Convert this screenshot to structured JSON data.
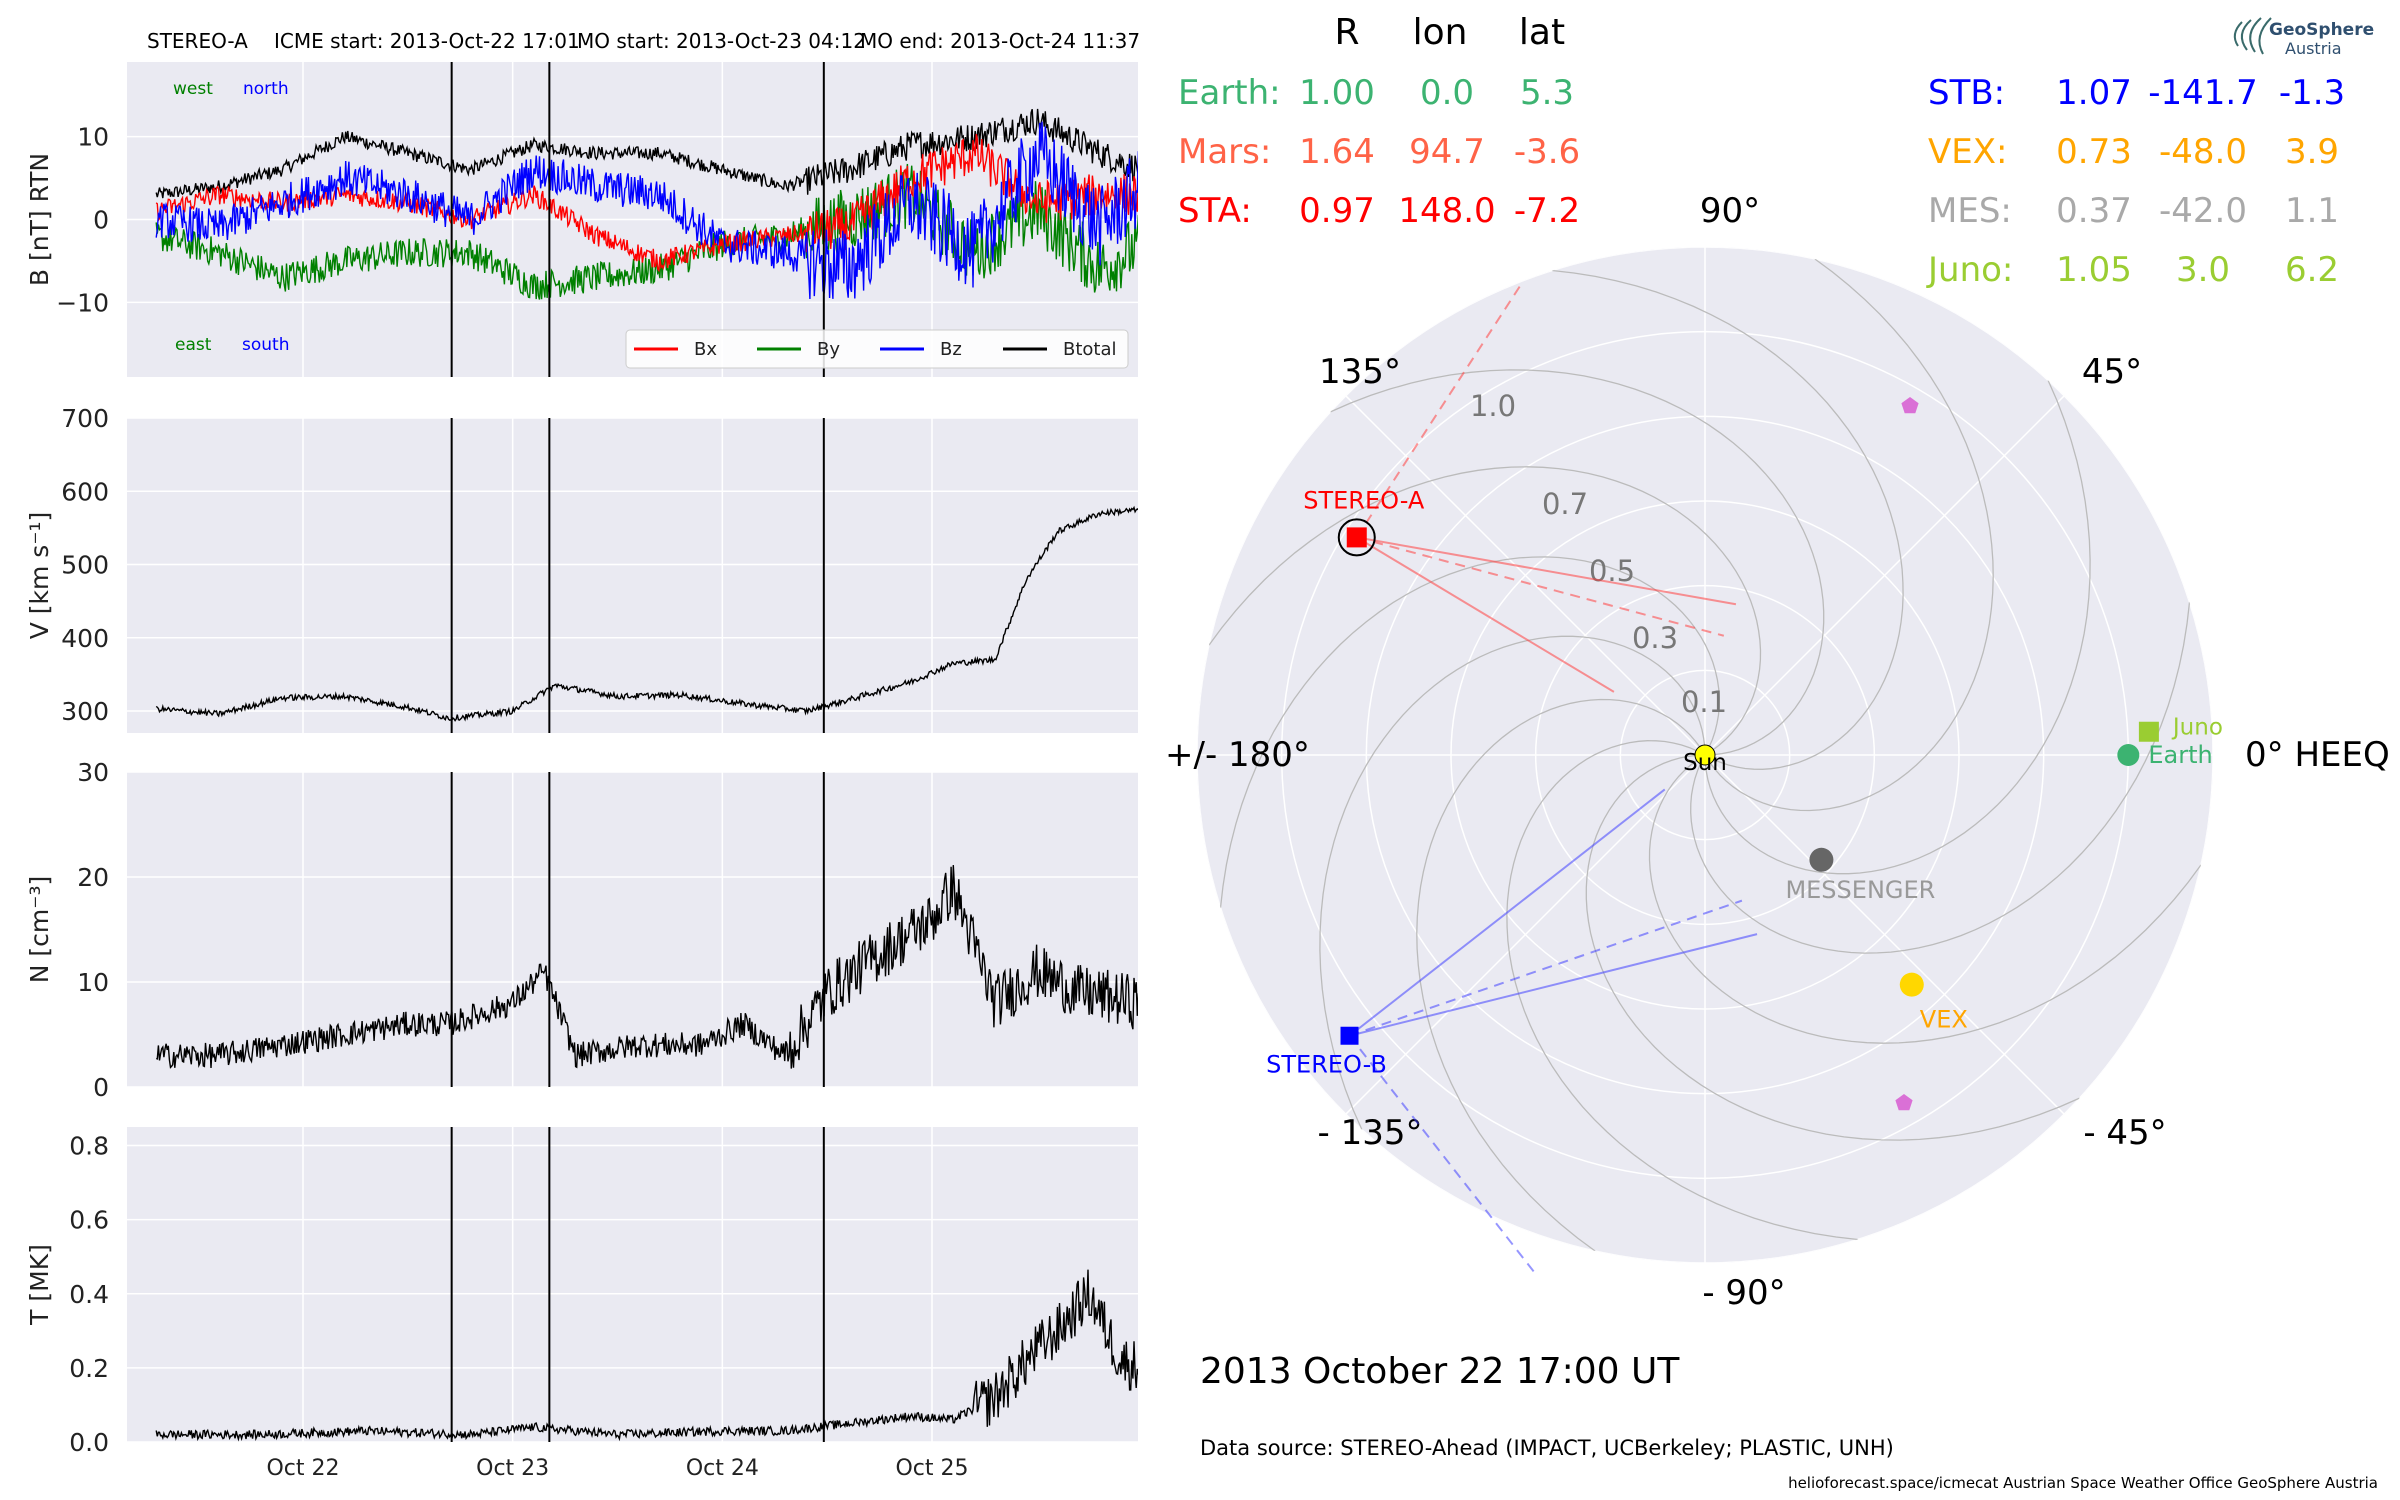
{
  "header": {
    "spacecraft": "STEREO-A",
    "icme_start": "ICME start: 2013-Oct-22 17:01",
    "mo_start": "MO start: 2013-Oct-23 04:12",
    "mo_end": "MO end: 2013-Oct-24 11:37"
  },
  "logo": {
    "line1": "GeoSphere",
    "line2": "Austria"
  },
  "footer": {
    "timestamp": "2013 October 22  17:00 UT",
    "data_source": "Data source: STEREO-Ahead (IMPACT, UCBerkeley; PLASTIC, UNH)",
    "credits": "helioforecast.space/icmecat   Austrian Space Weather Office   GeoSphere Austria"
  },
  "timeseries": {
    "x_tick_labels": [
      "Oct 22",
      "Oct 23",
      "Oct 24",
      "Oct 25"
    ],
    "x_range_days": [
      "2013-10-21 07:00",
      "2013-10-25 23:59"
    ],
    "event_lines": [
      "2013-10-22 17:01",
      "2013-10-23 04:12",
      "2013-10-24 11:37"
    ],
    "colors": {
      "bx": "#ff0000",
      "by": "#008000",
      "bz": "#0000ff",
      "bt": "#000000",
      "panel_bg": "#eaeaf2",
      "grid": "#ffffff"
    },
    "panels": [
      {
        "id": "b",
        "ylabel": "B [nT] RTN",
        "ylim": [
          -19,
          19
        ],
        "yticks": [
          10,
          0,
          -10
        ],
        "ytick_labels": [
          "10",
          "0",
          "−10"
        ],
        "annotations": {
          "west": "west",
          "north": "north",
          "east": "east",
          "south": "south"
        },
        "legend": [
          "Bx",
          "By",
          "Bz",
          "Btotal"
        ]
      },
      {
        "id": "v",
        "ylabel": "V [km s⁻¹]",
        "ylim": [
          270,
          700
        ],
        "yticks": [
          700,
          600,
          500,
          400,
          300
        ],
        "ytick_labels": [
          "700",
          "600",
          "500",
          "400",
          "300"
        ]
      },
      {
        "id": "n",
        "ylabel": "N [cm⁻³]",
        "ylim": [
          0,
          30
        ],
        "yticks": [
          30,
          20,
          10,
          0
        ],
        "ytick_labels": [
          "30",
          "20",
          "10",
          "0"
        ]
      },
      {
        "id": "t",
        "ylabel": "T [MK]",
        "ylim": [
          0,
          0.85
        ],
        "yticks": [
          0.8,
          0.6,
          0.4,
          0.2,
          0.0
        ],
        "ytick_labels": [
          "0.8",
          "0.6",
          "0.4",
          "0.2",
          "0.0"
        ]
      }
    ]
  },
  "position_table": {
    "col_headers": [
      "R",
      "lon",
      "lat"
    ],
    "left_rows": [
      {
        "name": "Earth:",
        "r": "1.00",
        "lon": "0.0",
        "lat": "5.3",
        "color": "#3cb371"
      },
      {
        "name": "Mars:",
        "r": "1.64",
        "lon": "94.7",
        "lat": "-3.6",
        "color": "#ff6347"
      },
      {
        "name": "STA:",
        "r": "0.97",
        "lon": "148.0",
        "lat": "-7.2",
        "color": "#ff0000"
      }
    ],
    "right_rows": [
      {
        "name": "STB:",
        "r": "1.07",
        "lon": "-141.7",
        "lat": "-1.3",
        "color": "#0000ff"
      },
      {
        "name": "VEX:",
        "r": "0.73",
        "lon": "-48.0",
        "lat": "3.9",
        "color": "#ffa500"
      },
      {
        "name": "MES:",
        "r": "0.37",
        "lon": "-42.0",
        "lat": "1.1",
        "color": "#a9a9a9"
      },
      {
        "name": "Juno:",
        "r": "1.05",
        "lon": "3.0",
        "lat": "6.2",
        "color": "#9acd32"
      }
    ]
  },
  "polar": {
    "angle_labels": [
      "90°",
      "45°",
      "0° HEEQ",
      "- 45°",
      "- 90°",
      "- 135°",
      "+/- 180°",
      "135°"
    ],
    "radial_labels": [
      "0.1",
      "0.3",
      "0.5",
      "0.7",
      "1.0"
    ],
    "rmax": 1.2,
    "bodies": [
      {
        "label": "Sun",
        "r": 0.0,
        "lon": 0.0,
        "color": "#ffff00"
      },
      {
        "label": "Earth",
        "r": 1.0,
        "lon": 0.0,
        "color": "#3cb371"
      },
      {
        "label": "Juno",
        "r": 1.05,
        "lon": 3.0,
        "color": "#9acd32"
      },
      {
        "label": "STEREO-A",
        "r": 0.97,
        "lon": 148.0,
        "color": "#ff0000"
      },
      {
        "label": "STEREO-B",
        "r": 1.07,
        "lon": -141.7,
        "color": "#0000ff"
      },
      {
        "label": "VEX",
        "r": 0.73,
        "lon": -48.0,
        "color": "#ffd700"
      },
      {
        "label": "MESSENGER",
        "r": 0.37,
        "lon": -42.0,
        "color": "#666666"
      }
    ]
  },
  "chart_data": [
    {
      "type": "line",
      "title": "STEREO-A    ICME start: 2013-Oct-22 17:01    MO start: 2013-Oct-23 04:12    MO end: 2013-Oct-24 11:37",
      "ylabel": "B [nT] RTN",
      "ylim": [
        -19,
        19
      ],
      "x_unit": "2013-Oct day of month (fractional)",
      "x": [
        21.3,
        21.6,
        21.9,
        22.2,
        22.5,
        22.8,
        23.1,
        23.4,
        23.7,
        24.0,
        24.3,
        24.6,
        24.9,
        25.2,
        25.5,
        25.8,
        26.0
      ],
      "series": [
        {
          "name": "Bx",
          "values": [
            1,
            3,
            2,
            3,
            2,
            0,
            3,
            -2,
            -5,
            -3,
            -2,
            -1,
            5,
            8,
            2,
            3,
            3
          ]
        },
        {
          "name": "By",
          "values": [
            -2,
            -4,
            -7,
            -5,
            -4,
            -4,
            -8,
            -7,
            -6,
            -3,
            -2,
            0,
            3,
            -4,
            1,
            -6,
            -3
          ]
        },
        {
          "name": "Bz",
          "values": [
            0,
            -1,
            2,
            5,
            3,
            0,
            6,
            4,
            3,
            -3,
            -4,
            -6,
            2,
            -4,
            8,
            -1,
            4
          ]
        },
        {
          "name": "Btotal",
          "values": [
            3,
            4,
            6,
            10,
            8,
            6,
            9,
            8,
            8,
            6,
            4,
            6,
            9,
            10,
            12,
            8,
            6
          ]
        }
      ],
      "legend": "bottom-right"
    },
    {
      "type": "line",
      "ylabel": "V [km s⁻¹]",
      "ylim": [
        270,
        700
      ],
      "x": [
        21.3,
        21.6,
        21.9,
        22.2,
        22.5,
        22.7,
        23.0,
        23.2,
        23.5,
        23.8,
        24.1,
        24.4,
        24.6,
        24.9,
        25.1,
        25.3,
        25.45,
        25.6,
        25.8,
        26.0
      ],
      "series": [
        {
          "name": "",
          "values": [
            303,
            296,
            318,
            320,
            305,
            290,
            300,
            335,
            320,
            322,
            310,
            300,
            315,
            340,
            365,
            370,
            480,
            545,
            570,
            575
          ]
        }
      ]
    },
    {
      "type": "line",
      "ylabel": "N [cm⁻³]",
      "ylim": [
        0,
        30
      ],
      "x": [
        21.3,
        21.6,
        21.9,
        22.2,
        22.5,
        22.7,
        23.0,
        23.15,
        23.3,
        23.6,
        23.9,
        24.1,
        24.3,
        24.5,
        24.7,
        25.0,
        25.1,
        25.3,
        25.5,
        25.7,
        26.0
      ],
      "series": [
        {
          "name": "",
          "values": [
            3,
            3,
            4,
            5,
            6,
            6,
            8,
            11,
            3,
            4,
            4,
            6,
            3,
            9,
            12,
            16,
            19,
            8,
            11,
            9,
            8
          ]
        }
      ]
    },
    {
      "type": "line",
      "ylabel": "T [MK]",
      "ylim": [
        0,
        0.85
      ],
      "x": [
        21.3,
        21.8,
        22.3,
        22.8,
        23.1,
        23.5,
        24.0,
        24.3,
        24.6,
        24.9,
        25.1,
        25.3,
        25.5,
        25.6,
        25.75,
        25.9,
        26.0
      ],
      "series": [
        {
          "name": "",
          "values": [
            0.02,
            0.02,
            0.03,
            0.02,
            0.04,
            0.02,
            0.03,
            0.03,
            0.05,
            0.07,
            0.06,
            0.12,
            0.25,
            0.3,
            0.4,
            0.22,
            0.2
          ]
        }
      ]
    }
  ]
}
